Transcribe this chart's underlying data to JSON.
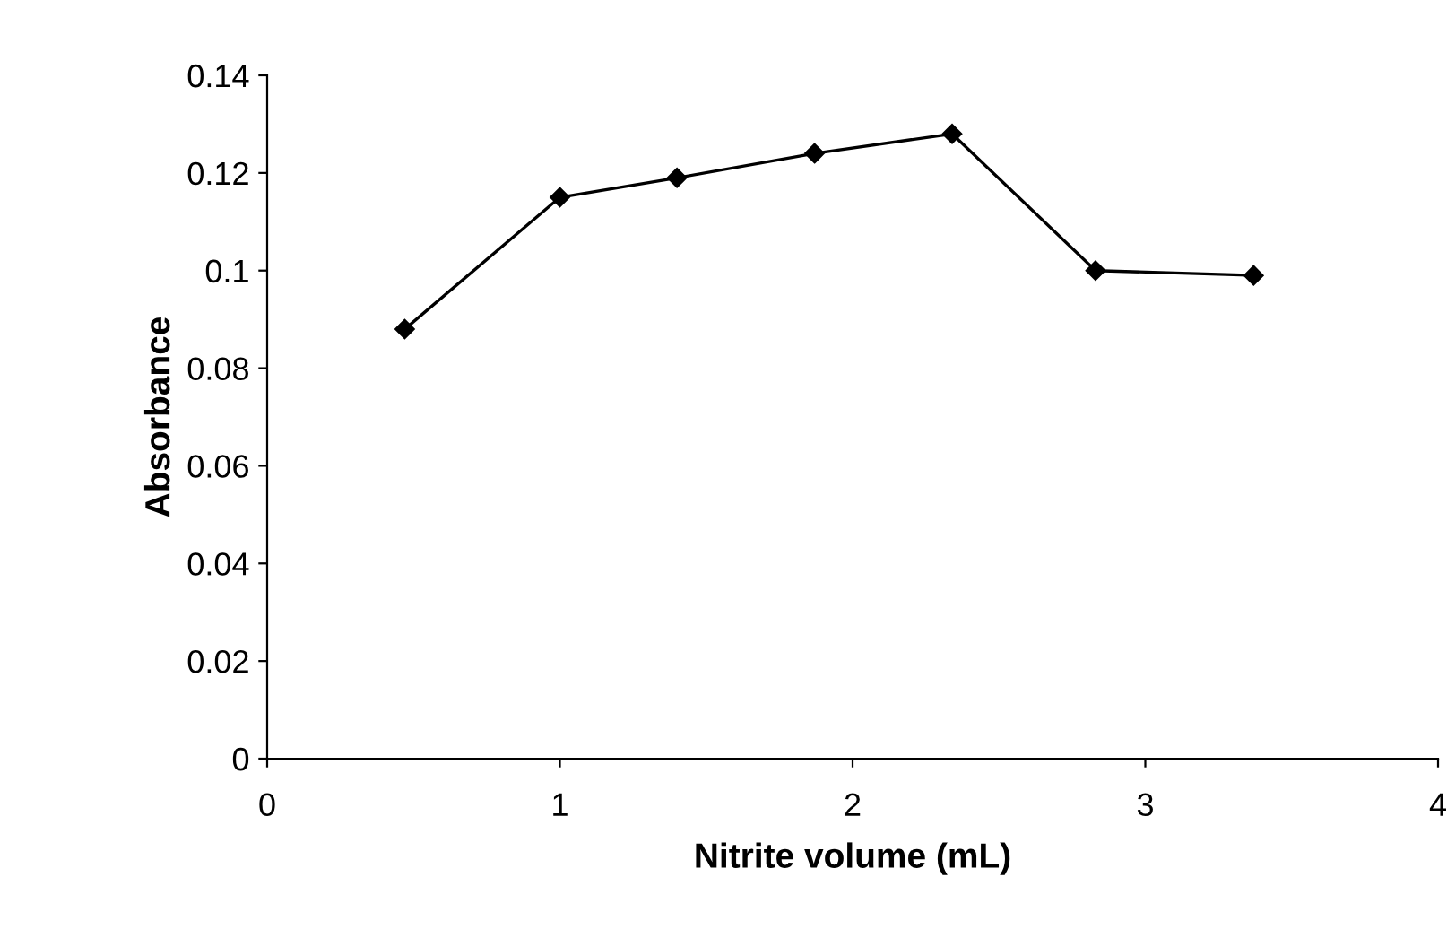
{
  "chart_data": {
    "type": "line",
    "xlabel": "Nitrite volume (mL)",
    "ylabel": "Absorbance",
    "x": [
      0.47,
      1.0,
      1.4,
      1.87,
      2.34,
      2.83,
      3.37
    ],
    "series": [
      {
        "color": "#000000",
        "values": [
          0.088,
          0.115,
          0.119,
          0.124,
          0.128,
          0.1,
          0.099
        ]
      }
    ],
    "xlim": [
      0,
      4
    ],
    "ylim": [
      0,
      0.14
    ],
    "xticks": [
      0,
      1,
      2,
      3,
      4
    ],
    "yticks": [
      0,
      0.02,
      0.04,
      0.06,
      0.08,
      0.1,
      0.12,
      0.14
    ],
    "marker": "diamond",
    "line_style": "solid",
    "grid": false,
    "legend": false
  }
}
